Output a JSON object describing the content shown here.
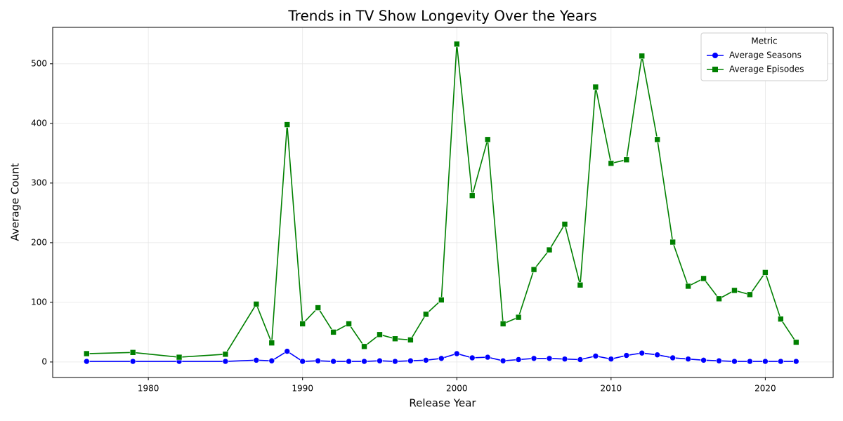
{
  "chart_data": {
    "type": "line",
    "title": "Trends in TV Show Longevity Over the Years",
    "x_label": "Release Year",
    "y_label": "Average Count",
    "x": [
      1976,
      1979,
      1982,
      1985,
      1987,
      1988,
      1989,
      1990,
      1991,
      1992,
      1993,
      1994,
      1995,
      1996,
      1997,
      1998,
      1999,
      2000,
      2001,
      2002,
      2003,
      2004,
      2005,
      2006,
      2007,
      2008,
      2009,
      2010,
      2011,
      2012,
      2013,
      2014,
      2015,
      2016,
      2017,
      2018,
      2019,
      2020,
      2021,
      2022
    ],
    "series": [
      {
        "name": "Average Seasons",
        "color": "#0000ff",
        "marker": "circle",
        "values": [
          1,
          1,
          1,
          1,
          3,
          2,
          18,
          1,
          2,
          1,
          1,
          1,
          2,
          1,
          2,
          3,
          6,
          14,
          7,
          8,
          2,
          4,
          6,
          6,
          5,
          4,
          10,
          5,
          11,
          15,
          12,
          7,
          5,
          3,
          2,
          1,
          1,
          1,
          1,
          1
        ]
      },
      {
        "name": "Average Episodes",
        "color": "#008000",
        "marker": "square",
        "values": [
          14,
          16,
          8,
          13,
          97,
          32,
          398,
          64,
          91,
          50,
          64,
          26,
          46,
          39,
          37,
          80,
          104,
          533,
          279,
          373,
          64,
          75,
          155,
          188,
          231,
          129,
          461,
          333,
          339,
          513,
          373,
          201,
          127,
          140,
          106,
          120,
          113,
          150,
          72,
          33
        ]
      }
    ],
    "xlim": [
      1973.8,
      2024.4
    ],
    "ylim": [
      -26,
      561
    ],
    "xticks": [
      1980,
      1990,
      2000,
      2010,
      2020
    ],
    "yticks": [
      0,
      100,
      200,
      300,
      400,
      500
    ],
    "grid": true,
    "legend_title": "Metric",
    "legend_position": "upper-right"
  }
}
